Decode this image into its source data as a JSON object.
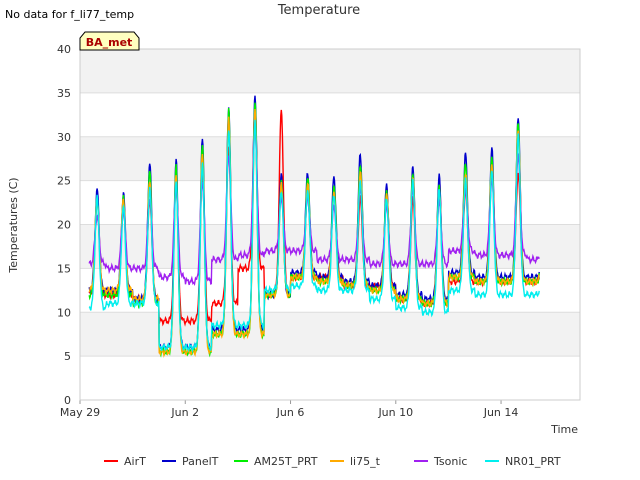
{
  "chart_data": {
    "type": "line",
    "title": "Temperature",
    "note": "No data for f_li77_temp",
    "badge": "BA_met",
    "xlabel": "Time",
    "ylabel": "Temperatures (C)",
    "ylim": [
      0,
      40
    ],
    "yticks": [
      0,
      5,
      10,
      15,
      20,
      25,
      30,
      35,
      40
    ],
    "xlim": [
      "2024-05-29",
      "2024-06-17"
    ],
    "xticks": [
      {
        "label": "May 29",
        "value": "2024-05-29"
      },
      {
        "label": "Jun 2",
        "value": "2024-06-02"
      },
      {
        "label": "Jun 6",
        "value": "2024-06-06"
      },
      {
        "label": "Jun 10",
        "value": "2024-06-10"
      },
      {
        "label": "Jun 14",
        "value": "2024-06-14"
      }
    ],
    "grid": true,
    "legend_position": "bottom",
    "days": [
      "May 29",
      "May 30",
      "May 31",
      "Jun 1",
      "Jun 2",
      "Jun 3",
      "Jun 4",
      "Jun 5",
      "Jun 6",
      "Jun 7",
      "Jun 8",
      "Jun 9",
      "Jun 10",
      "Jun 11",
      "Jun 12",
      "Jun 13",
      "Jun 14",
      "Jun 15"
    ],
    "series": [
      {
        "name": "AirT",
        "color": "#ff0000",
        "daily_min": [
          12,
          12,
          11.5,
          9,
          9,
          11,
          15,
          12,
          14,
          14,
          13,
          13,
          11.5,
          11,
          13.5,
          13.5,
          13.5,
          13.5
        ],
        "daily_max": [
          23,
          22,
          23,
          25,
          26,
          29,
          33,
          33,
          24,
          24,
          23,
          24,
          23,
          25,
          24,
          26,
          26,
          30
        ]
      },
      {
        "name": "PanelT",
        "color": "#0000cc",
        "daily_min": [
          12.5,
          12.5,
          11.5,
          6,
          6,
          8,
          8,
          12,
          14.5,
          14,
          13.5,
          13,
          12,
          11.5,
          14.5,
          14,
          14,
          14
        ],
        "daily_max": [
          24,
          23.5,
          27,
          27.5,
          30,
          33.5,
          35,
          26,
          26,
          25.5,
          28,
          24.5,
          26.5,
          25.5,
          28,
          28.5,
          32,
          32
        ]
      },
      {
        "name": "AM25T_PRT",
        "color": "#00ee00",
        "daily_min": [
          12,
          12,
          11,
          5.5,
          5.5,
          7.5,
          7.5,
          12,
          14,
          13.5,
          13,
          12.5,
          11.5,
          11,
          14,
          13.5,
          13.5,
          13.5
        ],
        "daily_max": [
          23,
          23,
          26,
          26.5,
          29,
          33,
          34,
          25,
          25.5,
          24.5,
          27,
          24,
          26,
          24.5,
          27,
          27.5,
          31.5,
          31.5
        ]
      },
      {
        "name": "li75_t",
        "color": "#ffaa00",
        "daily_min": [
          12.5,
          12.5,
          11.5,
          5.5,
          5.5,
          7.5,
          7.5,
          12,
          14,
          13.5,
          13,
          12.5,
          11.5,
          11,
          14,
          13.5,
          13.5,
          13.5
        ],
        "daily_max": [
          23,
          23,
          25,
          25.5,
          28,
          32,
          33,
          24.5,
          24.5,
          23.5,
          26,
          23.5,
          25.5,
          24,
          26,
          27,
          31,
          31
        ]
      },
      {
        "name": "Tsonic",
        "color": "#a020f0",
        "daily_min": [
          15.5,
          15,
          15,
          14,
          13.5,
          16,
          16.5,
          17,
          17,
          16,
          16,
          15.5,
          15.5,
          15.5,
          17,
          16.5,
          16.5,
          16
        ],
        "daily_max": [
          21,
          21.5,
          23,
          24,
          25,
          28,
          31,
          23,
          23,
          22,
          24,
          22,
          24,
          22.5,
          24,
          25,
          28,
          28
        ]
      },
      {
        "name": "NR01_PRT",
        "color": "#00eeee",
        "daily_min": [
          10.5,
          11,
          11,
          6,
          6,
          8.5,
          8.5,
          12.5,
          13,
          12.5,
          12.5,
          11.5,
          10.5,
          10,
          12.5,
          12,
          12,
          12
        ],
        "daily_max": [
          23,
          22,
          24,
          25,
          27,
          31,
          32,
          24,
          24,
          23.5,
          25,
          23,
          25,
          24,
          25,
          26,
          30,
          30
        ]
      }
    ]
  }
}
